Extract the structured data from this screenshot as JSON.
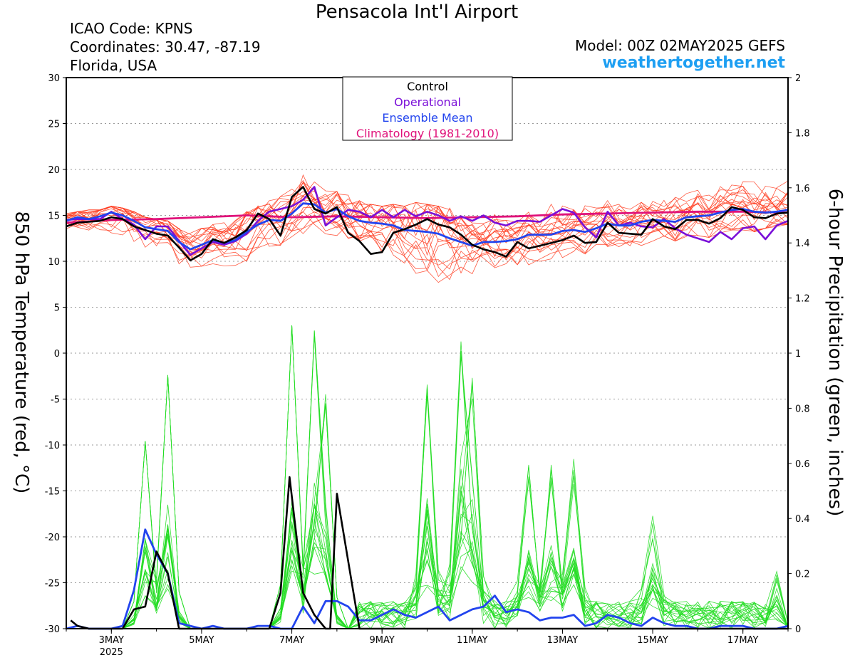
{
  "header": {
    "title": "Pensacola Int'l Airport",
    "icao": "ICAO Code: KPNS",
    "coordinates": "Coordinates: 30.47, -87.19",
    "location": "Florida, USA",
    "model": "Model: 00Z 02MAY2025 GEFS",
    "site": "weathertogether.net"
  },
  "colors": {
    "control": "#000000",
    "operational": "#7a0fd8",
    "ensemble_mean": "#2244ee",
    "climatology": "#e0127a",
    "members_temp": "#ff3b1f",
    "members_precip": "#22dd22",
    "site": "#1e9ff2"
  },
  "chart_data": {
    "type": "line",
    "title": "Pensacola Int'l Airport",
    "ylabel_left": "850 hPa Temperature (red, °C)",
    "ylabel_right": "6-hour Precipitation (green, inches)",
    "ylim_left": [
      -30,
      30
    ],
    "ylim_right": [
      0,
      2
    ],
    "x_range_days": [
      2.0,
      18.0
    ],
    "x_ticks": [
      {
        "day": 3,
        "label": "3MAY",
        "sublabel": "2025"
      },
      {
        "day": 5,
        "label": "5MAY",
        "sublabel": ""
      },
      {
        "day": 7,
        "label": "7MAY",
        "sublabel": ""
      },
      {
        "day": 9,
        "label": "9MAY",
        "sublabel": ""
      },
      {
        "day": 11,
        "label": "11MAY",
        "sublabel": ""
      },
      {
        "day": 13,
        "label": "13MAY",
        "sublabel": ""
      },
      {
        "day": 15,
        "label": "15MAY",
        "sublabel": ""
      },
      {
        "day": 17,
        "label": "17MAY",
        "sublabel": ""
      }
    ],
    "y_ticks_left": [
      30,
      25,
      20,
      15,
      10,
      5,
      0,
      -5,
      -10,
      -15,
      -20,
      -25,
      -30
    ],
    "y_ticks_right": [
      "2",
      "1.8",
      "1.6",
      "1.4",
      "1.2",
      "1",
      "0.8",
      "0.6",
      "0.4",
      "0.2",
      "0"
    ],
    "grid": true,
    "legend": {
      "placement": "top-center",
      "entries": [
        "Control",
        "Operational",
        "Ensemble Mean",
        "Climatology (1981-2010)"
      ]
    },
    "series": [
      {
        "name": "Control",
        "axis": "left",
        "x": [
          2,
          2.25,
          2.5,
          2.75,
          3,
          3.25,
          3.5,
          3.75,
          4,
          4.25,
          4.5,
          4.75,
          5,
          5.25,
          5.5,
          5.75,
          6,
          6.25,
          6.5,
          6.75,
          7,
          7.25,
          7.5,
          7.75,
          8,
          8.25,
          8.5,
          8.75,
          9,
          9.25,
          9.5,
          9.75,
          10,
          10.25,
          10.5,
          10.75,
          11,
          11.25,
          11.5,
          11.75,
          12,
          12.25,
          12.5,
          12.75,
          13,
          13.25,
          13.5,
          13.75,
          14,
          14.25,
          14.5,
          14.75,
          15,
          15.25,
          15.5,
          15.75,
          16,
          16.25,
          16.5,
          16.75,
          17,
          17.25,
          17.5,
          17.75,
          18
        ],
        "values": [
          13.8,
          14.2,
          14.3,
          14.4,
          14.8,
          14.6,
          13.8,
          13.4,
          13.0,
          12.8,
          11.5,
          10.1,
          10.8,
          12.4,
          12.0,
          12.6,
          13.4,
          15.2,
          14.6,
          12.8,
          17.0,
          18.1,
          15.7,
          15.2,
          15.9,
          13.1,
          12.2,
          10.8,
          11.0,
          13.1,
          13.5,
          14.0,
          14.6,
          14.0,
          13.7,
          12.9,
          11.8,
          11.3,
          11.0,
          10.5,
          12.1,
          11.4,
          11.7,
          12.0,
          12.3,
          12.8,
          12.0,
          12.1,
          14.2,
          13.1,
          13.0,
          12.9,
          14.6,
          13.8,
          13.5,
          14.5,
          14.5,
          14.1,
          14.7,
          15.9,
          15.6,
          14.8,
          14.7,
          15.2,
          15.3
        ]
      },
      {
        "name": "Operational",
        "axis": "left",
        "x": [
          2,
          2.25,
          2.5,
          2.75,
          3,
          3.25,
          3.5,
          3.75,
          4,
          4.25,
          4.5,
          4.75,
          5,
          5.25,
          5.5,
          5.75,
          6,
          6.25,
          6.5,
          6.75,
          7,
          7.25,
          7.5,
          7.75,
          8,
          8.25,
          8.5,
          8.75,
          9,
          9.25,
          9.5,
          9.75,
          10,
          10.25,
          10.5,
          10.75,
          11,
          11.25,
          11.5,
          11.75,
          12,
          12.25,
          12.5,
          12.75,
          13,
          13.25,
          13.5,
          13.75,
          14,
          14.25,
          14.5,
          14.75,
          15,
          15.25,
          15.5,
          15.75,
          16,
          16.25,
          16.5,
          16.75,
          17,
          17.25,
          17.5,
          17.75,
          18
        ],
        "values": [
          14.5,
          14.6,
          14.6,
          14.6,
          15.4,
          14.6,
          14.0,
          12.4,
          13.8,
          13.8,
          12.2,
          10.7,
          11.4,
          12.1,
          11.8,
          12.2,
          13.0,
          14.4,
          15.4,
          15.7,
          16.0,
          16.7,
          18.1,
          13.9,
          14.8,
          15.6,
          15.4,
          14.8,
          15.6,
          14.8,
          15.6,
          14.9,
          15.4,
          15.0,
          14.4,
          14.9,
          14.4,
          15.0,
          14.2,
          13.9,
          14.4,
          14.4,
          14.3,
          15.0,
          15.7,
          15.3,
          13.7,
          12.6,
          15.4,
          13.9,
          14.2,
          13.8,
          13.7,
          14.6,
          13.6,
          12.9,
          12.5,
          12.1,
          13.2,
          12.4,
          13.6,
          13.8,
          12.4,
          13.9,
          14.4
        ]
      },
      {
        "name": "Ensemble Mean",
        "axis": "left",
        "x": [
          2,
          2.25,
          2.5,
          2.75,
          3,
          3.25,
          3.5,
          3.75,
          4,
          4.25,
          4.5,
          4.75,
          5,
          5.25,
          5.5,
          5.75,
          6,
          6.25,
          6.5,
          6.75,
          7,
          7.25,
          7.5,
          7.75,
          8,
          8.25,
          8.5,
          8.75,
          9,
          9.25,
          9.5,
          9.75,
          10,
          10.25,
          10.5,
          10.75,
          11,
          11.25,
          11.5,
          11.75,
          12,
          12.25,
          12.5,
          12.75,
          13,
          13.25,
          13.5,
          13.75,
          14,
          14.25,
          14.5,
          14.75,
          15,
          15.25,
          15.5,
          15.75,
          16,
          16.25,
          16.5,
          16.75,
          17,
          17.25,
          17.5,
          17.75,
          18
        ],
        "values": [
          14.4,
          14.8,
          14.6,
          14.9,
          15.3,
          15.0,
          14.4,
          13.7,
          13.5,
          13.3,
          12.1,
          11.3,
          11.8,
          12.3,
          12.0,
          12.3,
          13.2,
          14.0,
          14.5,
          14.4,
          15.2,
          16.3,
          16.2,
          15.3,
          15.7,
          14.9,
          14.4,
          14.2,
          14.1,
          13.9,
          13.4,
          13.3,
          13.2,
          13.0,
          12.5,
          12.1,
          11.7,
          12.1,
          12.1,
          12.2,
          12.4,
          12.9,
          12.9,
          12.9,
          13.3,
          13.4,
          13.2,
          13.6,
          14.1,
          13.9,
          13.9,
          14.3,
          14.5,
          14.4,
          14.3,
          14.8,
          14.9,
          15.0,
          15.3,
          15.6,
          15.7,
          15.4,
          15.3,
          15.4,
          15.6
        ]
      },
      {
        "name": "Climatology (1981-2010)",
        "axis": "left",
        "x": [
          2,
          3,
          4,
          5,
          6,
          7,
          8,
          9,
          10,
          11,
          12,
          13,
          14,
          15,
          16,
          17,
          18
        ],
        "values": [
          14.2,
          14.5,
          14.6,
          14.8,
          15.0,
          14.8,
          14.9,
          14.8,
          14.7,
          14.8,
          14.9,
          15.1,
          15.2,
          15.3,
          15.4,
          15.4,
          15.3
        ]
      },
      {
        "name": "Control",
        "axis": "right",
        "x": [
          2.1,
          2.25,
          2.5,
          2.75,
          3,
          3.25,
          3.5,
          3.75,
          4,
          4.25,
          4.5,
          4.75,
          5,
          5.5,
          6,
          6.25,
          6.5,
          6.75,
          6.95,
          7.25,
          7.5,
          7.75,
          7.85,
          8,
          8.5,
          9,
          9.5,
          10,
          10.5,
          11,
          11.5,
          12,
          12.5,
          13,
          13.25,
          13.5,
          13.75,
          14,
          14.25,
          14.5,
          14.75,
          15,
          15.25,
          15.5,
          15.75,
          16,
          16.5,
          17,
          17.5,
          18
        ],
        "values": [
          0.03,
          0.01,
          0.0,
          0.0,
          0.0,
          0.0,
          0.07,
          0.08,
          0.28,
          0.2,
          0.0,
          0.0,
          0.0,
          0.0,
          0.0,
          0.0,
          0.0,
          0.13,
          0.55,
          0.13,
          0.05,
          0.0,
          0.0,
          0.49,
          0.0,
          0.0,
          0.0,
          0.0,
          0.0,
          0.0,
          0.0,
          0.0,
          0.0,
          0.0,
          0.0,
          0.0,
          0.0,
          0.0,
          0.0,
          0.0,
          0.0,
          0.0,
          0.0,
          0.0,
          0.0,
          0.0,
          0.0,
          0.0,
          0.0,
          0.0
        ]
      },
      {
        "name": "Ensemble Mean",
        "axis": "right",
        "x": [
          2,
          2.25,
          2.5,
          2.75,
          3,
          3.25,
          3.5,
          3.75,
          4,
          4.25,
          4.5,
          4.75,
          5,
          5.25,
          5.5,
          5.75,
          6,
          6.25,
          6.5,
          6.75,
          7,
          7.25,
          7.5,
          7.75,
          8,
          8.25,
          8.5,
          8.75,
          9,
          9.25,
          9.5,
          9.75,
          10,
          10.25,
          10.5,
          10.75,
          11,
          11.25,
          11.5,
          11.75,
          12,
          12.25,
          12.5,
          12.75,
          13,
          13.25,
          13.5,
          13.75,
          14,
          14.25,
          14.5,
          14.75,
          15,
          15.25,
          15.5,
          15.75,
          16,
          16.25,
          16.5,
          16.75,
          17,
          17.25,
          17.5,
          17.75,
          18
        ],
        "values": [
          0.0,
          0.01,
          0.0,
          0.0,
          0.0,
          0.01,
          0.14,
          0.36,
          0.27,
          0.2,
          0.02,
          0.01,
          0.0,
          0.01,
          0.0,
          0.0,
          0.0,
          0.01,
          0.01,
          0.0,
          0.0,
          0.08,
          0.02,
          0.1,
          0.1,
          0.08,
          0.03,
          0.03,
          0.05,
          0.07,
          0.05,
          0.04,
          0.06,
          0.08,
          0.03,
          0.05,
          0.07,
          0.08,
          0.12,
          0.06,
          0.07,
          0.06,
          0.03,
          0.04,
          0.04,
          0.05,
          0.01,
          0.02,
          0.05,
          0.04,
          0.02,
          0.01,
          0.04,
          0.02,
          0.01,
          0.01,
          0.0,
          0.0,
          0.01,
          0.01,
          0.01,
          0.0,
          0.0,
          0.0,
          0.01
        ]
      }
    ],
    "ensemble_temperature_members": {
      "count": 20,
      "envelope_low": [
        13.2,
        13.4,
        13.2,
        13.0,
        13.0,
        12.6,
        12.0,
        11.2,
        10.8,
        10.4,
        9.6,
        9.2,
        9.0,
        9.4,
        9.1,
        9.2,
        10.0,
        10.8,
        11.2,
        11.6,
        12.2,
        12.8,
        13.0,
        12.6,
        12.2,
        11.4,
        10.6,
        10.0,
        9.8,
        9.4,
        8.6,
        8.2,
        7.6,
        7.2,
        7.4,
        8.0,
        8.4,
        8.6,
        8.8,
        9.2,
        9.4,
        9.6,
        10.0,
        10.2,
        10.4,
        10.6,
        10.8,
        11.0,
        11.6,
        11.4,
        11.4,
        11.6,
        12.2,
        12.0,
        12.2,
        12.6,
        12.8,
        12.6,
        13.0,
        13.4,
        13.4,
        13.2,
        13.6,
        13.8,
        14.0
      ],
      "envelope_high": [
        15.2,
        15.4,
        15.6,
        15.6,
        16.0,
        15.8,
        15.4,
        14.8,
        14.6,
        14.4,
        13.6,
        13.2,
        13.6,
        14.0,
        14.2,
        14.8,
        15.4,
        16.4,
        17.0,
        17.6,
        18.2,
        19.4,
        19.0,
        18.0,
        17.6,
        17.2,
        16.6,
        16.2,
        16.0,
        16.2,
        16.0,
        16.4,
        16.2,
        16.0,
        15.8,
        15.8,
        15.6,
        15.6,
        15.4,
        15.4,
        15.6,
        16.0,
        16.2,
        16.6,
        16.8,
        16.2,
        16.4,
        16.6,
        16.8,
        16.6,
        16.4,
        16.8,
        17.0,
        17.2,
        17.4,
        17.6,
        18.0,
        18.4,
        18.6,
        18.8,
        19.2,
        19.6,
        19.2,
        19.0,
        19.6
      ]
    },
    "ensemble_precipitation_members": {
      "count": 20,
      "peaks": [
        {
          "x": 3.75,
          "value": 0.68
        },
        {
          "x": 4.25,
          "value": 0.92
        },
        {
          "x": 7.0,
          "value": 1.1
        },
        {
          "x": 7.5,
          "value": 1.04
        },
        {
          "x": 7.75,
          "value": 0.78
        },
        {
          "x": 10.0,
          "value": 0.8
        },
        {
          "x": 10.75,
          "value": 0.93
        },
        {
          "x": 11.0,
          "value": 0.79
        },
        {
          "x": 12.25,
          "value": 0.51
        },
        {
          "x": 12.75,
          "value": 0.5
        },
        {
          "x": 13.25,
          "value": 0.52
        },
        {
          "x": 15.0,
          "value": 0.32
        },
        {
          "x": 17.75,
          "value": 0.14
        }
      ]
    }
  }
}
